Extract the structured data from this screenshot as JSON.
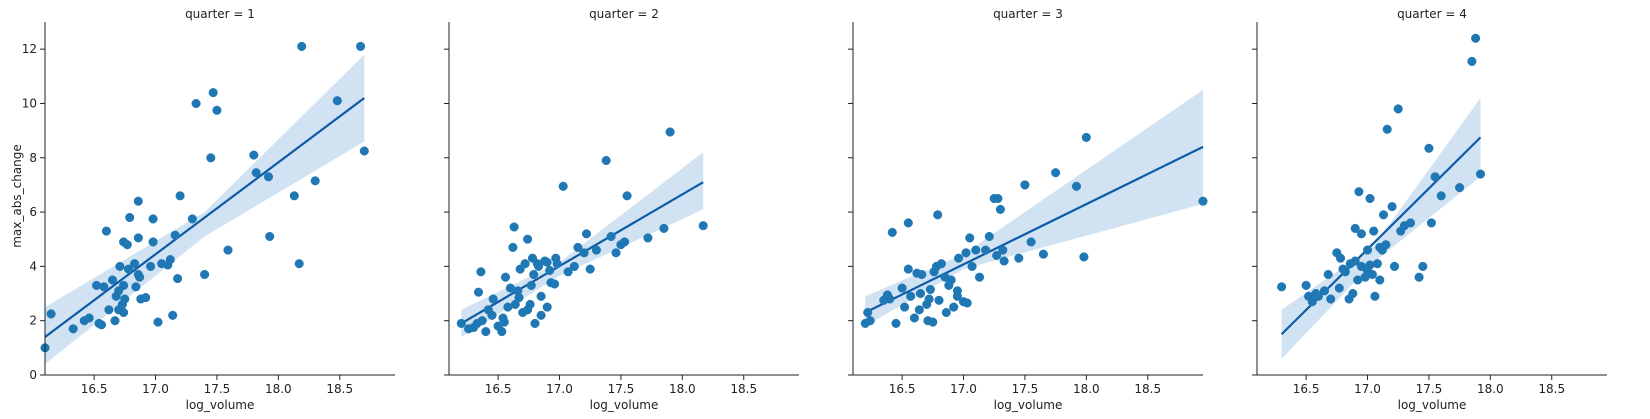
{
  "figure": {
    "ylabel": "max_abs_change",
    "xlabel": "log_volume"
  },
  "colors": {
    "points": "#1f77b4",
    "line": "#0d5aa7",
    "band": "#c6dbef",
    "axis": "#222222"
  },
  "chart_data": [
    {
      "type": "scatter",
      "title": "quarter = 1",
      "xlabel": "log_volume",
      "ylabel": "max_abs_change",
      "xlim": [
        16.1,
        18.95
      ],
      "ylim": [
        0,
        13
      ],
      "xticks": [
        "16.5",
        "17.0",
        "17.5",
        "18.0",
        "18.5"
      ],
      "yticks": [
        "0",
        "2",
        "4",
        "6",
        "8",
        "10",
        "12"
      ],
      "points": [
        [
          16.1,
          1.0
        ],
        [
          16.15,
          2.25
        ],
        [
          16.33,
          1.7
        ],
        [
          16.42,
          2.0
        ],
        [
          16.46,
          2.1
        ],
        [
          16.52,
          3.3
        ],
        [
          16.54,
          1.9
        ],
        [
          16.56,
          1.85
        ],
        [
          16.58,
          3.25
        ],
        [
          16.6,
          5.3
        ],
        [
          16.62,
          2.4
        ],
        [
          16.65,
          3.5
        ],
        [
          16.67,
          2.0
        ],
        [
          16.68,
          2.9
        ],
        [
          16.7,
          2.4
        ],
        [
          16.7,
          3.1
        ],
        [
          16.71,
          4.0
        ],
        [
          16.73,
          2.6
        ],
        [
          16.74,
          3.3
        ],
        [
          16.74,
          2.3
        ],
        [
          16.74,
          4.9
        ],
        [
          16.75,
          2.8
        ],
        [
          16.77,
          4.8
        ],
        [
          16.78,
          3.9
        ],
        [
          16.79,
          5.8
        ],
        [
          16.83,
          4.1
        ],
        [
          16.84,
          3.25
        ],
        [
          16.86,
          3.7
        ],
        [
          16.86,
          5.05
        ],
        [
          16.86,
          6.4
        ],
        [
          16.87,
          3.6
        ],
        [
          16.88,
          2.8
        ],
        [
          16.92,
          2.85
        ],
        [
          16.96,
          4.0
        ],
        [
          16.98,
          4.9
        ],
        [
          16.98,
          5.75
        ],
        [
          17.02,
          1.95
        ],
        [
          17.05,
          4.1
        ],
        [
          17.1,
          4.05
        ],
        [
          17.12,
          4.25
        ],
        [
          17.14,
          2.2
        ],
        [
          17.16,
          5.15
        ],
        [
          17.18,
          3.55
        ],
        [
          17.2,
          6.6
        ],
        [
          17.3,
          5.75
        ],
        [
          17.33,
          10.0
        ],
        [
          17.4,
          3.7
        ],
        [
          17.45,
          8.0
        ],
        [
          17.47,
          10.4
        ],
        [
          17.5,
          9.75
        ],
        [
          17.59,
          4.6
        ],
        [
          17.8,
          8.1
        ],
        [
          17.82,
          7.45
        ],
        [
          17.92,
          7.3
        ],
        [
          17.93,
          5.1
        ],
        [
          18.13,
          6.6
        ],
        [
          18.17,
          4.1
        ],
        [
          18.19,
          12.1
        ],
        [
          18.3,
          7.15
        ],
        [
          18.48,
          10.1
        ],
        [
          18.67,
          12.1
        ],
        [
          18.7,
          8.25
        ]
      ],
      "regression": {
        "x": [
          16.1,
          18.7
        ],
        "y": [
          1.4,
          10.2
        ]
      },
      "ci_band": {
        "x": [
          16.1,
          17.4,
          18.7
        ],
        "lower": [
          0.4,
          5.1,
          8.6
        ],
        "upper": [
          2.5,
          6.0,
          11.8
        ]
      }
    },
    {
      "type": "scatter",
      "title": "quarter = 2",
      "xlabel": "log_volume",
      "ylabel": "",
      "xlim": [
        16.1,
        18.95
      ],
      "ylim": [
        0,
        13
      ],
      "xticks": [
        "16.5",
        "17.0",
        "17.5",
        "18.0",
        "18.5"
      ],
      "yticks": [],
      "points": [
        [
          16.2,
          1.9
        ],
        [
          16.26,
          1.7
        ],
        [
          16.3,
          1.75
        ],
        [
          16.33,
          1.9
        ],
        [
          16.34,
          3.05
        ],
        [
          16.36,
          3.8
        ],
        [
          16.37,
          2.0
        ],
        [
          16.4,
          1.6
        ],
        [
          16.42,
          2.4
        ],
        [
          16.45,
          2.2
        ],
        [
          16.46,
          2.8
        ],
        [
          16.5,
          1.8
        ],
        [
          16.53,
          1.6
        ],
        [
          16.54,
          2.1
        ],
        [
          16.55,
          1.95
        ],
        [
          16.56,
          3.6
        ],
        [
          16.58,
          2.5
        ],
        [
          16.6,
          3.2
        ],
        [
          16.62,
          4.7
        ],
        [
          16.63,
          5.45
        ],
        [
          16.64,
          2.6
        ],
        [
          16.66,
          3.1
        ],
        [
          16.67,
          2.85
        ],
        [
          16.68,
          3.9
        ],
        [
          16.7,
          2.3
        ],
        [
          16.72,
          4.1
        ],
        [
          16.74,
          5.0
        ],
        [
          16.74,
          2.4
        ],
        [
          16.76,
          2.6
        ],
        [
          16.77,
          3.3
        ],
        [
          16.78,
          4.3
        ],
        [
          16.79,
          3.7
        ],
        [
          16.8,
          1.9
        ],
        [
          16.82,
          4.1
        ],
        [
          16.83,
          4.0
        ],
        [
          16.85,
          2.2
        ],
        [
          16.85,
          2.9
        ],
        [
          16.88,
          4.2
        ],
        [
          16.9,
          4.15
        ],
        [
          16.9,
          2.5
        ],
        [
          16.92,
          3.85
        ],
        [
          16.93,
          3.4
        ],
        [
          16.96,
          3.35
        ],
        [
          16.97,
          4.3
        ],
        [
          16.98,
          4.1
        ],
        [
          17.03,
          6.95
        ],
        [
          17.07,
          3.8
        ],
        [
          17.12,
          4.0
        ],
        [
          17.15,
          4.7
        ],
        [
          17.2,
          4.5
        ],
        [
          17.22,
          5.2
        ],
        [
          17.25,
          3.9
        ],
        [
          17.3,
          4.6
        ],
        [
          17.38,
          7.9
        ],
        [
          17.42,
          5.1
        ],
        [
          17.46,
          4.5
        ],
        [
          17.5,
          4.8
        ],
        [
          17.53,
          4.9
        ],
        [
          17.55,
          6.6
        ],
        [
          17.72,
          5.05
        ],
        [
          17.85,
          5.4
        ],
        [
          17.9,
          8.95
        ],
        [
          18.17,
          5.5
        ]
      ],
      "regression": {
        "x": [
          16.2,
          18.17
        ],
        "y": [
          1.9,
          7.1
        ]
      },
      "ci_band": {
        "x": [
          16.2,
          17.0,
          18.17
        ],
        "lower": [
          1.4,
          3.65,
          6.1
        ],
        "upper": [
          2.4,
          4.15,
          8.2
        ]
      }
    },
    {
      "type": "scatter",
      "title": "quarter = 3",
      "xlabel": "log_volume",
      "ylabel": "",
      "xlim": [
        16.1,
        18.95
      ],
      "ylim": [
        0,
        13
      ],
      "xticks": [
        "16.5",
        "17.0",
        "17.5",
        "18.0",
        "18.5"
      ],
      "yticks": [],
      "points": [
        [
          16.2,
          1.9
        ],
        [
          16.22,
          2.3
        ],
        [
          16.24,
          2.0
        ],
        [
          16.35,
          2.75
        ],
        [
          16.38,
          2.95
        ],
        [
          16.4,
          2.8
        ],
        [
          16.42,
          5.25
        ],
        [
          16.45,
          1.9
        ],
        [
          16.5,
          3.2
        ],
        [
          16.52,
          2.5
        ],
        [
          16.55,
          5.6
        ],
        [
          16.55,
          3.9
        ],
        [
          16.57,
          2.9
        ],
        [
          16.6,
          2.1
        ],
        [
          16.62,
          3.75
        ],
        [
          16.64,
          2.4
        ],
        [
          16.65,
          3.0
        ],
        [
          16.66,
          3.7
        ],
        [
          16.7,
          2.6
        ],
        [
          16.71,
          2.0
        ],
        [
          16.72,
          2.8
        ],
        [
          16.73,
          3.15
        ],
        [
          16.75,
          1.95
        ],
        [
          16.76,
          3.8
        ],
        [
          16.78,
          4.0
        ],
        [
          16.79,
          5.9
        ],
        [
          16.8,
          2.75
        ],
        [
          16.82,
          4.1
        ],
        [
          16.85,
          3.6
        ],
        [
          16.86,
          2.3
        ],
        [
          16.88,
          3.3
        ],
        [
          16.9,
          3.5
        ],
        [
          16.92,
          2.5
        ],
        [
          16.95,
          3.1
        ],
        [
          16.95,
          2.9
        ],
        [
          16.96,
          4.3
        ],
        [
          17.0,
          2.7
        ],
        [
          17.02,
          4.5
        ],
        [
          17.03,
          2.65
        ],
        [
          17.05,
          5.05
        ],
        [
          17.07,
          4.0
        ],
        [
          17.1,
          4.6
        ],
        [
          17.13,
          3.6
        ],
        [
          17.18,
          4.6
        ],
        [
          17.21,
          5.1
        ],
        [
          17.25,
          6.5
        ],
        [
          17.27,
          4.4
        ],
        [
          17.28,
          6.5
        ],
        [
          17.3,
          6.1
        ],
        [
          17.32,
          4.6
        ],
        [
          17.33,
          4.2
        ],
        [
          17.45,
          4.3
        ],
        [
          17.5,
          7.0
        ],
        [
          17.55,
          4.9
        ],
        [
          17.65,
          4.45
        ],
        [
          17.75,
          7.45
        ],
        [
          17.92,
          6.95
        ],
        [
          17.98,
          4.35
        ],
        [
          18.0,
          8.75
        ],
        [
          18.95,
          6.4
        ]
      ],
      "regression": {
        "x": [
          16.2,
          18.95
        ],
        "y": [
          2.3,
          8.4
        ]
      },
      "ci_band": {
        "x": [
          16.2,
          17.0,
          18.95
        ],
        "lower": [
          1.8,
          3.9,
          6.3
        ],
        "upper": [
          2.9,
          4.45,
          10.5
        ]
      }
    },
    {
      "type": "scatter",
      "title": "quarter = 4",
      "xlabel": "log_volume",
      "ylabel": "",
      "xlim": [
        16.1,
        18.95
      ],
      "ylim": [
        0,
        13
      ],
      "xticks": [
        "16.5",
        "17.0",
        "17.5",
        "18.0",
        "18.5"
      ],
      "yticks": [],
      "points": [
        [
          16.3,
          3.25
        ],
        [
          16.5,
          3.3
        ],
        [
          16.52,
          2.9
        ],
        [
          16.55,
          2.7
        ],
        [
          16.58,
          3.0
        ],
        [
          16.6,
          2.9
        ],
        [
          16.65,
          3.1
        ],
        [
          16.68,
          3.7
        ],
        [
          16.7,
          2.8
        ],
        [
          16.75,
          4.5
        ],
        [
          16.77,
          3.2
        ],
        [
          16.78,
          4.3
        ],
        [
          16.8,
          3.9
        ],
        [
          16.82,
          3.8
        ],
        [
          16.85,
          2.8
        ],
        [
          16.86,
          4.1
        ],
        [
          16.88,
          3.0
        ],
        [
          16.9,
          4.2
        ],
        [
          16.9,
          5.4
        ],
        [
          16.92,
          3.5
        ],
        [
          16.93,
          6.75
        ],
        [
          16.95,
          4.0
        ],
        [
          16.95,
          5.2
        ],
        [
          16.98,
          3.6
        ],
        [
          17.0,
          4.6
        ],
        [
          17.0,
          3.85
        ],
        [
          17.02,
          4.05
        ],
        [
          17.02,
          6.5
        ],
        [
          17.04,
          3.7
        ],
        [
          17.05,
          5.3
        ],
        [
          17.06,
          2.9
        ],
        [
          17.08,
          4.1
        ],
        [
          17.1,
          4.7
        ],
        [
          17.1,
          3.5
        ],
        [
          17.12,
          4.6
        ],
        [
          17.15,
          4.8
        ],
        [
          17.16,
          9.05
        ],
        [
          17.2,
          6.2
        ],
        [
          17.22,
          4.0
        ],
        [
          17.25,
          9.8
        ],
        [
          17.27,
          5.3
        ],
        [
          17.3,
          5.5
        ],
        [
          17.35,
          5.6
        ],
        [
          17.42,
          3.6
        ],
        [
          17.45,
          4.0
        ],
        [
          17.5,
          8.35
        ],
        [
          17.55,
          7.3
        ],
        [
          17.6,
          6.6
        ],
        [
          17.75,
          6.9
        ],
        [
          17.85,
          11.55
        ],
        [
          17.88,
          12.4
        ],
        [
          17.92,
          7.4
        ],
        [
          17.52,
          5.6
        ],
        [
          17.13,
          5.9
        ]
      ],
      "regression": {
        "x": [
          16.3,
          17.92
        ],
        "y": [
          1.5,
          8.75
        ]
      },
      "ci_band": {
        "x": [
          16.3,
          17.05,
          17.92
        ],
        "lower": [
          0.6,
          4.15,
          7.3
        ],
        "upper": [
          2.4,
          4.75,
          10.2
        ]
      }
    }
  ]
}
